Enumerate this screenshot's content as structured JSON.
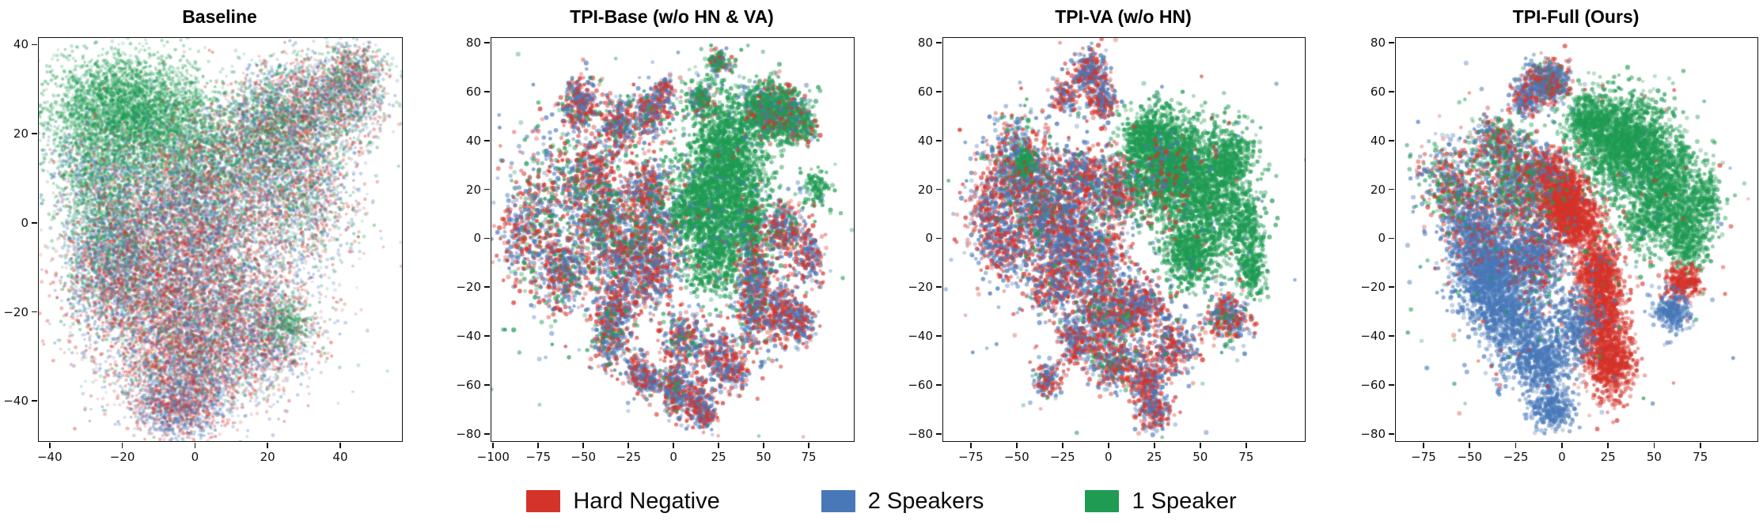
{
  "legend": {
    "items": [
      {
        "label": "Hard Negative",
        "color": "#d4332a"
      },
      {
        "label": "2 Speakers",
        "color": "#4878b8"
      },
      {
        "label": "1 Speaker",
        "color": "#1f9b53"
      }
    ]
  },
  "chart_data": {
    "type": "scatter",
    "point_colors": {
      "r": "#d4332a",
      "b": "#4878b8",
      "g": "#1f9b53"
    },
    "mixes": {
      "r": {
        "r": 1
      },
      "b": {
        "b": 1
      },
      "g": {
        "g": 1
      },
      "rb": {
        "r": 0.5,
        "b": 0.5
      },
      "br": {
        "b": 0.62,
        "r": 0.38
      },
      "rB": {
        "r": 0.71,
        "b": 0.29
      },
      "bR": {
        "b": 0.75,
        "r": 0.25
      },
      "rb2": {
        "r": 0.47,
        "b": 0.41,
        "g": 0.12
      },
      "rbp": {
        "r": 0.44,
        "b": 0.44,
        "g": 0.12
      },
      "rbg": {
        "r": 0.33,
        "b": 0.37,
        "g": 0.3
      },
      "rbg2": {
        "r": 0.38,
        "b": 0.48,
        "g": 0.14
      },
      "gb": {
        "g": 0.62,
        "b": 0.3,
        "r": 0.08
      },
      "gbr": {
        "g": 0.45,
        "b": 0.32,
        "r": 0.23
      },
      "grb": {
        "g": 0.58,
        "r": 0.21,
        "b": 0.21
      },
      "grb2": {
        "g": 0.72,
        "r": 0.14,
        "b": 0.14
      },
      "brt": {
        "b": 0.52,
        "r": 0.37,
        "g": 0.11
      }
    },
    "panels": [
      {
        "title": "Baseline",
        "xlim": [
          -43,
          57
        ],
        "ylim": [
          -49,
          41.5
        ],
        "xticks": [
          -40,
          -20,
          0,
          20,
          40
        ],
        "yticks": [
          40,
          20,
          0,
          -20,
          -40
        ],
        "alpha": 0.3,
        "radius": 2.1,
        "seed": 101,
        "clusters": [
          [
            -22,
            26,
            9,
            6,
            2600,
            "g"
          ],
          [
            -8,
            22,
            8,
            7,
            1600,
            "g"
          ],
          [
            -30,
            14,
            6,
            6,
            600,
            "gb"
          ],
          [
            -24,
            2,
            6,
            9,
            1500,
            "gb"
          ],
          [
            5,
            12,
            12,
            7,
            2100,
            "gbr"
          ],
          [
            20,
            22,
            7,
            6,
            1500,
            "gbr"
          ],
          [
            36,
            27,
            8,
            6,
            1500,
            "rbg"
          ],
          [
            44,
            33,
            4,
            4,
            600,
            "rbg"
          ],
          [
            30,
            8,
            7,
            9,
            1500,
            "rbg"
          ],
          [
            -2,
            -2,
            13,
            9,
            3700,
            "rbg2"
          ],
          [
            -22,
            -12,
            7,
            7,
            1400,
            "rbg2"
          ],
          [
            0,
            -20,
            13,
            8,
            3400,
            "rb2"
          ],
          [
            -2,
            -33,
            10,
            6,
            2000,
            "rb2"
          ],
          [
            -5,
            -42,
            6,
            3.5,
            800,
            "br"
          ],
          [
            20,
            -25,
            6,
            6,
            900,
            "rbg2"
          ],
          [
            26,
            -22,
            3,
            3,
            200,
            "g"
          ],
          [
            0,
            -5,
            22,
            18,
            700,
            "rbg"
          ]
        ]
      },
      {
        "title": "TPI-Base (w/o HN & VA)",
        "xlim": [
          -101,
          100
        ],
        "ylim": [
          -83,
          82
        ],
        "xticks": [
          -100,
          -75,
          -50,
          -25,
          0,
          25,
          50,
          75
        ],
        "yticks": [
          80,
          60,
          40,
          20,
          0,
          -20,
          -40,
          -60,
          -80
        ],
        "alpha": 0.55,
        "radius": 2.6,
        "seed": 202,
        "clusters": [
          [
            25,
            72,
            3,
            2.5,
            120,
            "grb"
          ],
          [
            -52,
            55,
            5,
            5,
            300,
            "rbp"
          ],
          [
            -30,
            46,
            6,
            6,
            290,
            "rbp"
          ],
          [
            -12,
            52,
            5,
            6,
            240,
            "rbp"
          ],
          [
            -5,
            60,
            3,
            3,
            80,
            "rb"
          ],
          [
            15,
            57,
            4,
            4,
            180,
            "grb"
          ],
          [
            -70,
            10,
            12,
            18,
            550,
            "rbg"
          ],
          [
            -85,
            0,
            6,
            8,
            150,
            "rb"
          ],
          [
            -60,
            -15,
            8,
            8,
            310,
            "rbp"
          ],
          [
            -45,
            25,
            8,
            8,
            320,
            "rbp"
          ],
          [
            -40,
            8,
            8,
            10,
            400,
            "rbg"
          ],
          [
            -25,
            -5,
            9,
            9,
            430,
            "rbp"
          ],
          [
            -30,
            -25,
            6,
            6,
            220,
            "rb"
          ],
          [
            -15,
            20,
            6,
            6,
            260,
            "rbp"
          ],
          [
            -8,
            5,
            8,
            8,
            300,
            "rbg"
          ],
          [
            -12,
            -15,
            7,
            7,
            280,
            "rb"
          ],
          [
            30,
            28,
            11,
            16,
            1900,
            "g"
          ],
          [
            12,
            12,
            7,
            8,
            450,
            "g"
          ],
          [
            22,
            -8,
            8,
            8,
            400,
            "g"
          ],
          [
            40,
            5,
            6,
            8,
            300,
            "g"
          ],
          [
            55,
            52,
            8,
            6,
            920,
            "grb2"
          ],
          [
            72,
            47,
            4,
            4,
            210,
            "grb2"
          ],
          [
            45,
            -22,
            5,
            13,
            610,
            "rbp"
          ],
          [
            60,
            -30,
            6,
            6,
            280,
            "rb"
          ],
          [
            70,
            -35,
            4,
            4,
            150,
            "rb"
          ],
          [
            62,
            3,
            6,
            6,
            300,
            "rbp"
          ],
          [
            75,
            -8,
            4,
            5,
            150,
            "rb"
          ],
          [
            80,
            20,
            4,
            4,
            100,
            "g"
          ],
          [
            -35,
            -40,
            5,
            6,
            270,
            "rbp"
          ],
          [
            -20,
            -55,
            4,
            4,
            140,
            "rb"
          ],
          [
            -12,
            -58,
            3,
            3,
            90,
            "rb"
          ],
          [
            0,
            -62,
            4,
            5,
            230,
            "rbp"
          ],
          [
            13,
            -67,
            5,
            5,
            240,
            "rb"
          ],
          [
            18,
            -73,
            3,
            3,
            90,
            "rb"
          ],
          [
            5,
            -42,
            6,
            6,
            270,
            "rbp"
          ],
          [
            25,
            -48,
            5,
            5,
            190,
            "rb"
          ],
          [
            33,
            -55,
            4,
            4,
            130,
            "rb"
          ],
          [
            0,
            0,
            42,
            34,
            450,
            "rbg"
          ]
        ]
      },
      {
        "title": "TPI-VA (w/o HN)",
        "xlim": [
          -90,
          107
        ],
        "ylim": [
          -83,
          82
        ],
        "xticks": [
          -75,
          -50,
          -25,
          0,
          25,
          50,
          75
        ],
        "yticks": [
          80,
          60,
          40,
          20,
          0,
          -20,
          -40,
          -60,
          -80
        ],
        "alpha": 0.55,
        "radius": 2.6,
        "seed": 303,
        "clusters": [
          [
            -10,
            68,
            5,
            4,
            280,
            "rb"
          ],
          [
            -3,
            56,
            4,
            4,
            170,
            "rb"
          ],
          [
            -25,
            58,
            4,
            3,
            110,
            "rb"
          ],
          [
            -48,
            30,
            9,
            9,
            680,
            "rbp"
          ],
          [
            -45,
            31,
            3,
            3,
            130,
            "g"
          ],
          [
            -65,
            12,
            7,
            8,
            300,
            "rb"
          ],
          [
            -55,
            -5,
            7,
            7,
            280,
            "rb"
          ],
          [
            -35,
            12,
            10,
            10,
            700,
            "rbg2"
          ],
          [
            -20,
            0,
            9,
            9,
            650,
            "br"
          ],
          [
            -15,
            25,
            7,
            6,
            350,
            "rb"
          ],
          [
            -30,
            -20,
            7,
            6,
            300,
            "rb"
          ],
          [
            -5,
            -12,
            8,
            8,
            400,
            "br"
          ],
          [
            5,
            20,
            7,
            7,
            400,
            "rbp"
          ],
          [
            32,
            30,
            11,
            11,
            1600,
            "g"
          ],
          [
            55,
            18,
            9,
            11,
            900,
            "g"
          ],
          [
            45,
            -5,
            8,
            7,
            550,
            "g"
          ],
          [
            68,
            32,
            6,
            7,
            350,
            "g"
          ],
          [
            75,
            5,
            5,
            7,
            300,
            "g"
          ],
          [
            78,
            -13,
            4,
            5,
            200,
            "g"
          ],
          [
            20,
            42,
            6,
            5,
            300,
            "g"
          ],
          [
            30,
            25,
            10,
            10,
            120,
            "rb"
          ],
          [
            0,
            -32,
            10,
            7,
            560,
            "rbp"
          ],
          [
            18,
            -28,
            7,
            6,
            320,
            "rb"
          ],
          [
            -18,
            -42,
            5,
            5,
            200,
            "rb"
          ],
          [
            3,
            -52,
            6,
            5,
            280,
            "rbp"
          ],
          [
            20,
            -57,
            5,
            5,
            260,
            "rb"
          ],
          [
            25,
            -70,
            5,
            4,
            220,
            "rb"
          ],
          [
            -33,
            -58,
            4,
            4,
            140,
            "rb"
          ],
          [
            35,
            -45,
            6,
            6,
            260,
            "rb"
          ],
          [
            65,
            -33,
            6,
            5,
            320,
            "rbp"
          ],
          [
            0,
            0,
            40,
            34,
            400,
            "rbg"
          ]
        ]
      },
      {
        "title": "TPI-Full (Ours)",
        "xlim": [
          -90,
          106
        ],
        "ylim": [
          -83,
          82
        ],
        "xticks": [
          -75,
          -50,
          -25,
          0,
          25,
          50,
          75
        ],
        "yticks": [
          80,
          60,
          40,
          20,
          0,
          -20,
          -40,
          -60,
          -80
        ],
        "alpha": 0.5,
        "radius": 2.6,
        "seed": 404,
        "clusters": [
          [
            35,
            38,
            13,
            10,
            1800,
            "g"
          ],
          [
            58,
            22,
            9,
            9,
            700,
            "g"
          ],
          [
            68,
            2,
            6,
            8,
            450,
            "g"
          ],
          [
            15,
            48,
            7,
            6,
            450,
            "g"
          ],
          [
            45,
            8,
            8,
            7,
            350,
            "g"
          ],
          [
            78,
            16,
            4,
            6,
            200,
            "g"
          ],
          [
            -8,
            64,
            6,
            4,
            540,
            "brt"
          ],
          [
            -20,
            57,
            4,
            4,
            200,
            "br"
          ],
          [
            0,
            16,
            7,
            6,
            1000,
            "r"
          ],
          [
            8,
            6,
            7,
            5,
            450,
            "r"
          ],
          [
            -8,
            28,
            6,
            5,
            350,
            "rB"
          ],
          [
            -25,
            20,
            10,
            9,
            780,
            "rbg"
          ],
          [
            22,
            -30,
            6,
            14,
            1100,
            "r"
          ],
          [
            28,
            -52,
            6,
            7,
            500,
            "r"
          ],
          [
            18,
            -12,
            6,
            6,
            350,
            "r"
          ],
          [
            65,
            -18,
            5,
            4,
            280,
            "r"
          ],
          [
            -40,
            -14,
            9,
            8,
            1100,
            "b"
          ],
          [
            -28,
            -32,
            10,
            8,
            750,
            "b"
          ],
          [
            -12,
            -50,
            9,
            7,
            650,
            "b"
          ],
          [
            -5,
            -70,
            6,
            4,
            300,
            "b"
          ],
          [
            -48,
            3,
            8,
            8,
            600,
            "bR"
          ],
          [
            -15,
            -8,
            9,
            8,
            700,
            "bR"
          ],
          [
            60,
            -30,
            5,
            4,
            260,
            "b"
          ],
          [
            8,
            -35,
            7,
            7,
            300,
            "b"
          ],
          [
            -60,
            22,
            9,
            9,
            450,
            "rbg"
          ],
          [
            -35,
            38,
            7,
            6,
            380,
            "rbg"
          ],
          [
            0,
            -5,
            40,
            32,
            350,
            "rbg"
          ]
        ]
      }
    ]
  }
}
